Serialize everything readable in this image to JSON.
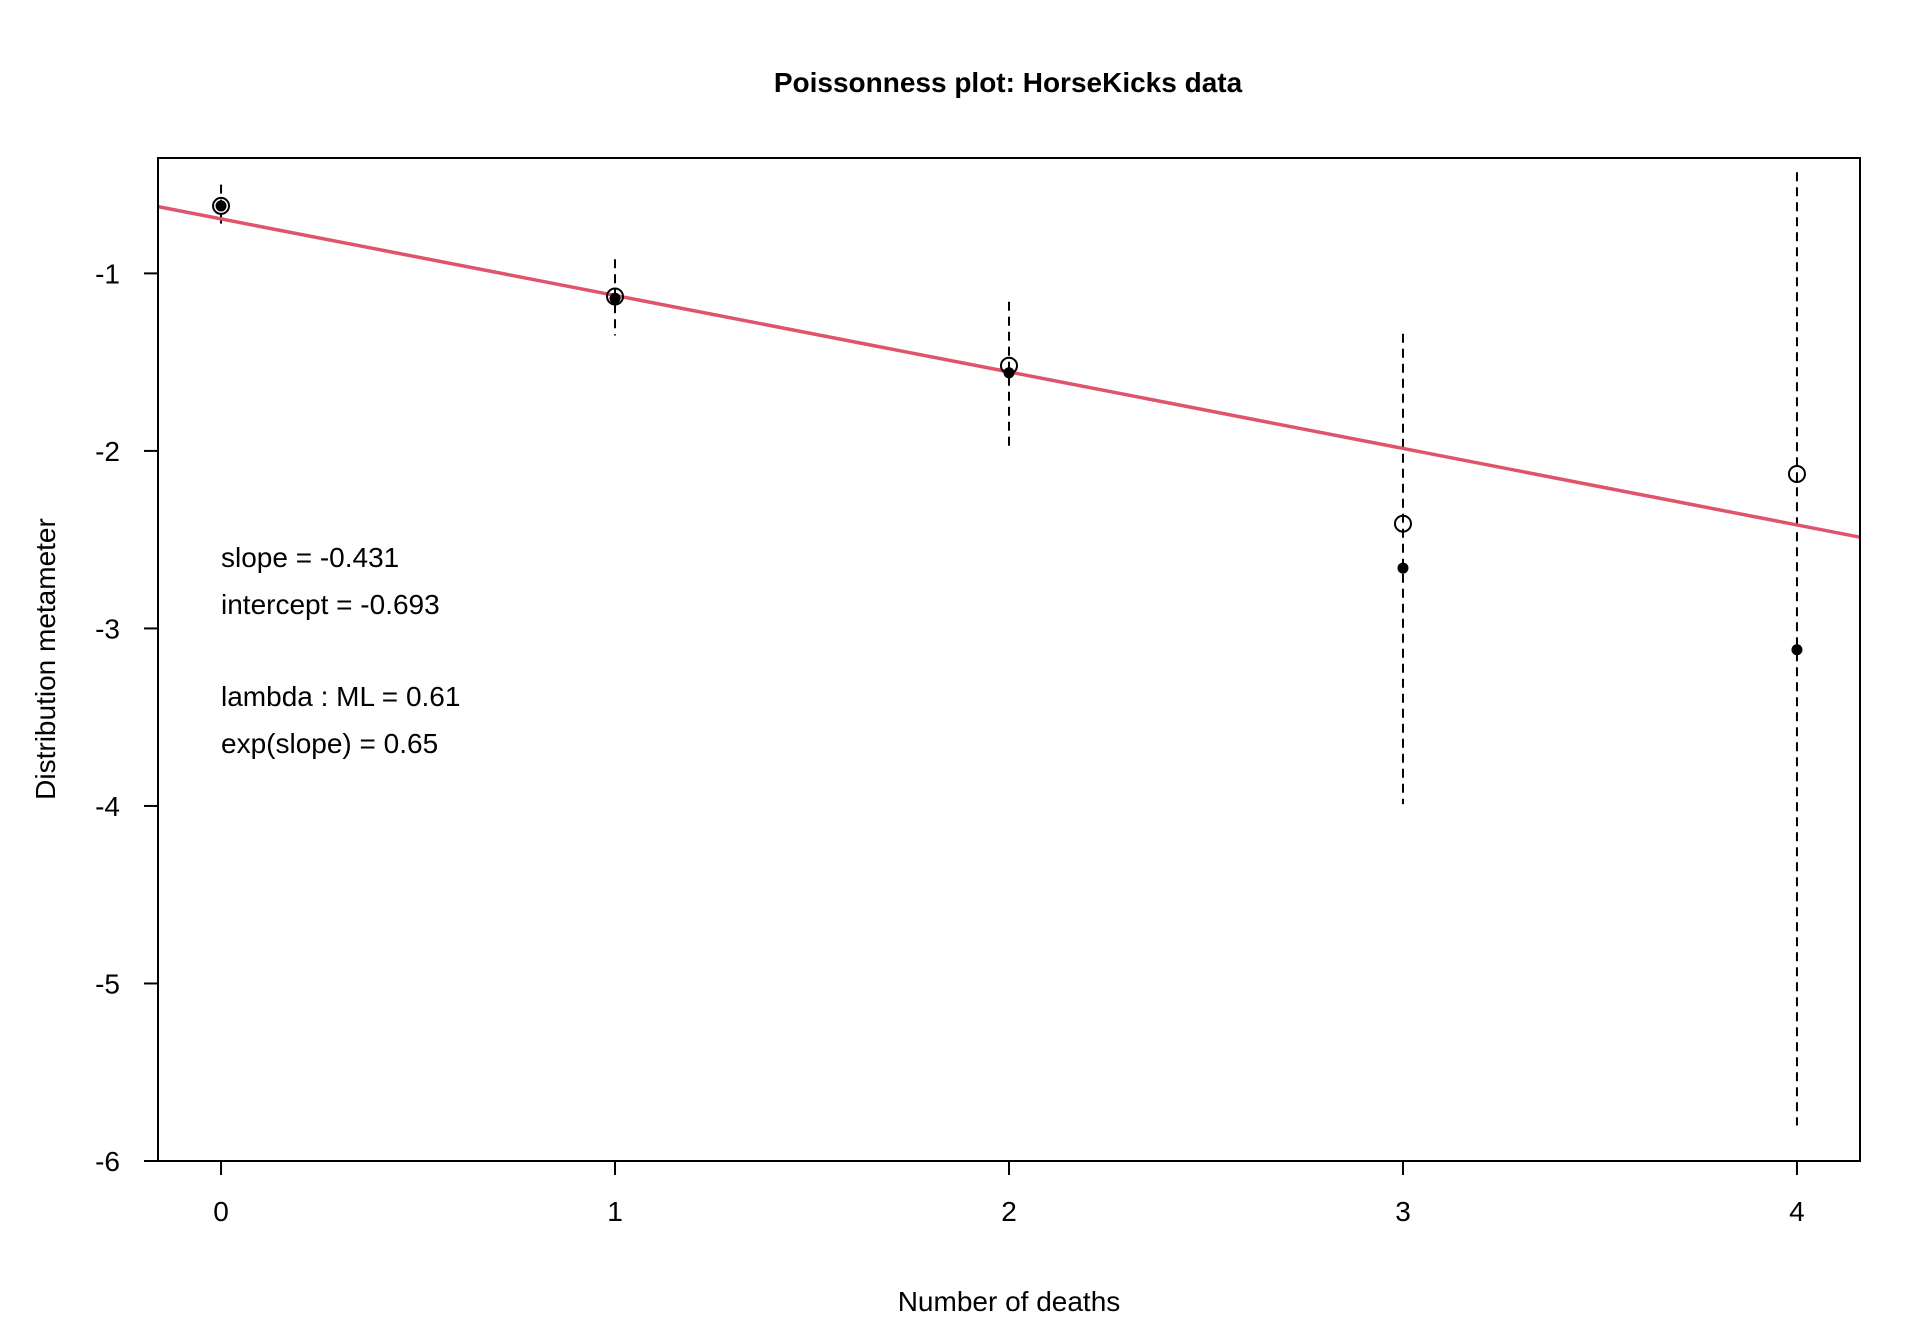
{
  "chart_data": {
    "type": "scatter",
    "title": "Poissonness plot: HorseKicks data",
    "xlabel": "Number of deaths",
    "ylabel": "Distribution metameter",
    "xlim": [
      -0.16,
      4.16
    ],
    "ylim": [
      -6.0,
      -0.35
    ],
    "x_ticks": [
      0,
      1,
      2,
      3,
      4
    ],
    "y_ticks": [
      -1,
      -2,
      -3,
      -4,
      -5,
      -6
    ],
    "grid": false,
    "series": [
      {
        "marker": "open-circle",
        "x": [
          0,
          1,
          2,
          3,
          4
        ],
        "y": [
          -0.62,
          -1.13,
          -1.52,
          -2.41,
          -2.13
        ]
      },
      {
        "marker": "filled-circle",
        "x": [
          0,
          1,
          2,
          3,
          4
        ],
        "y": [
          -0.62,
          -1.14,
          -1.56,
          -2.66,
          -3.12
        ]
      }
    ],
    "confidence_intervals": [
      {
        "x": 0,
        "low": -0.75,
        "high": -0.5
      },
      {
        "x": 1,
        "low": -1.35,
        "high": -0.92
      },
      {
        "x": 2,
        "low": -1.98,
        "high": -1.16
      },
      {
        "x": 3,
        "low": -3.99,
        "high": -1.34
      },
      {
        "x": 4,
        "low": -5.8,
        "high": -0.43
      }
    ],
    "fit_line": {
      "slope": -0.431,
      "intercept": -0.693,
      "color": "#DF536B"
    },
    "annotations": [
      "slope = -0.431",
      "intercept = -0.693",
      "lambda : ML = 0.61",
      "exp(slope) = 0.65"
    ]
  }
}
